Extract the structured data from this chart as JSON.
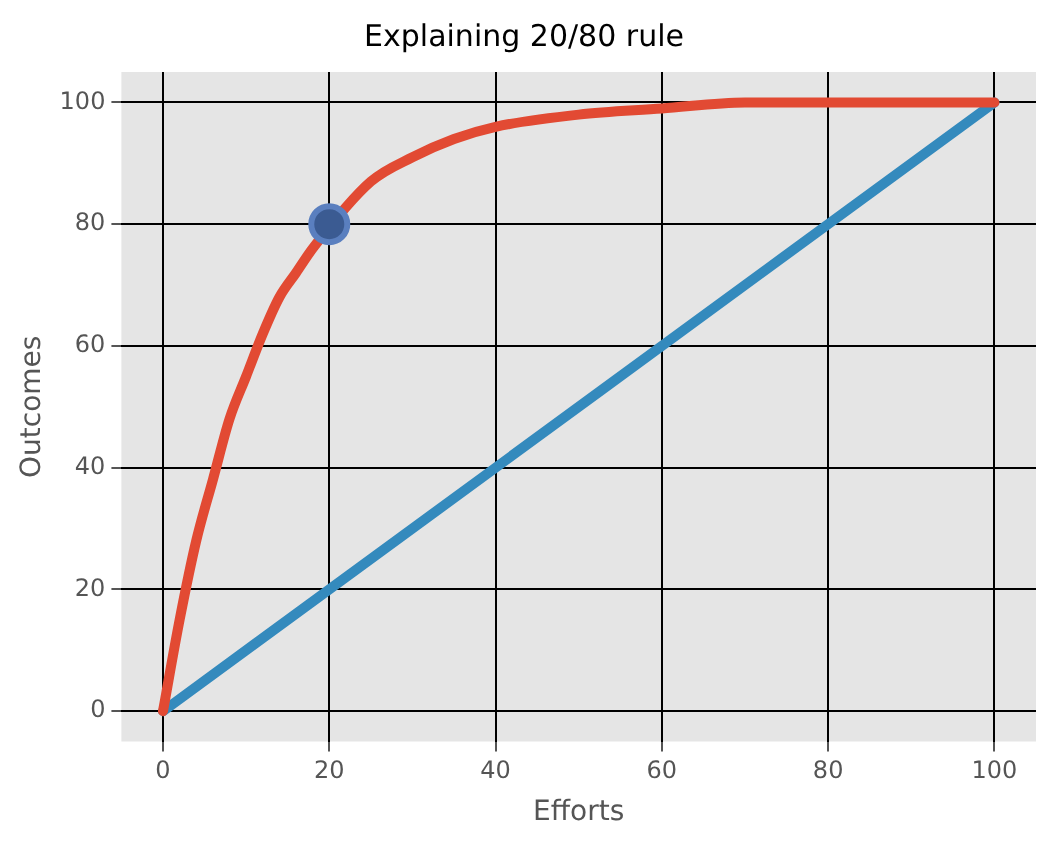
{
  "chart_data": {
    "type": "line",
    "title": "Explaining 20/80 rule",
    "xlabel": "Efforts",
    "ylabel": "Outcomes",
    "xlim": [
      -5,
      105
    ],
    "ylim": [
      -5,
      105
    ],
    "xticks": [
      0,
      20,
      40,
      60,
      80,
      100
    ],
    "yticks": [
      0,
      20,
      40,
      60,
      80,
      100
    ],
    "grid": true,
    "series": [
      {
        "type": "line",
        "color": "#e24a33",
        "x": [
          0,
          2,
          4,
          6,
          8,
          10,
          12,
          14,
          16,
          18,
          25,
          30,
          35,
          40,
          50,
          60,
          70,
          80,
          90,
          100
        ],
        "values": [
          0,
          15,
          28,
          38,
          48,
          55,
          62,
          68,
          72,
          76,
          87,
          91,
          94,
          96,
          98,
          99,
          100,
          100,
          100,
          100
        ]
      },
      {
        "type": "line",
        "color": "#348abd",
        "x": [
          0,
          100
        ],
        "values": [
          0,
          100
        ]
      },
      {
        "type": "scatter",
        "color": "#3b5b92",
        "marker": "circle",
        "x": [
          20
        ],
        "values": [
          80
        ]
      }
    ]
  }
}
